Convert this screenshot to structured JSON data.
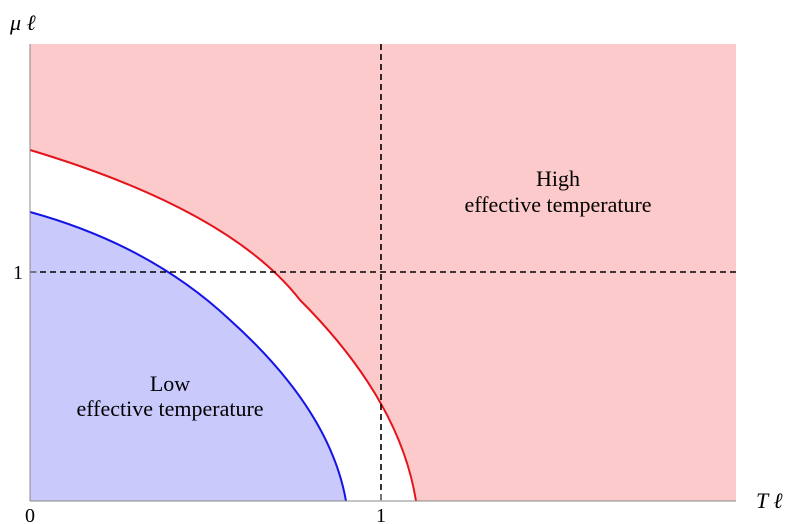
{
  "axes": {
    "x_label": "T ℓ",
    "y_label": "μ ℓ",
    "x_ticks": [
      "0",
      "1"
    ],
    "y_ticks": [
      "1"
    ]
  },
  "regions": {
    "high": {
      "line1": "High",
      "line2": "effective temperature",
      "color": "#fccaca"
    },
    "low": {
      "line1": "Low",
      "line2": "effective temperature",
      "color": "#c9c9fb"
    }
  },
  "curves": {
    "outer_color": "#e4141c",
    "inner_color": "#1414e4"
  }
}
